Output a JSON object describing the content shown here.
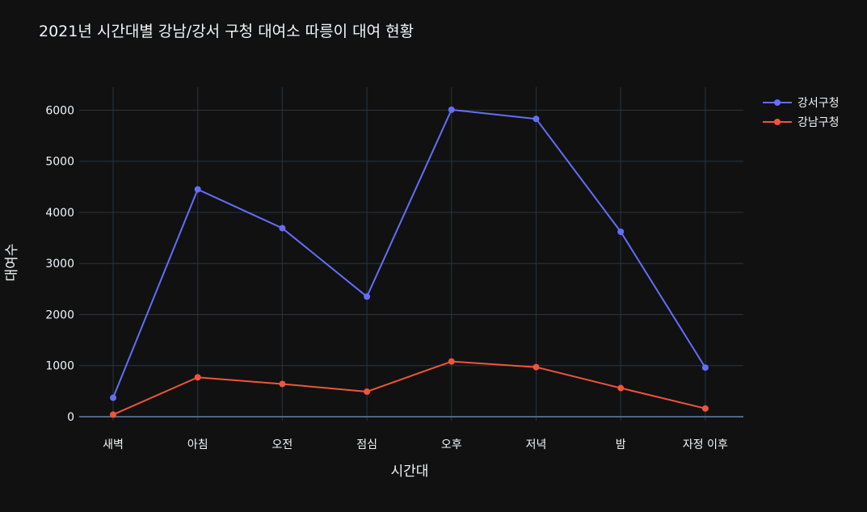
{
  "chart_data": {
    "type": "line",
    "title": "2021년 시간대별 강남/강서 구청 대여소 따릉이 대여 현황",
    "xlabel": "시간대",
    "ylabel": "대여수",
    "categories": [
      "새벽",
      "아침",
      "오전",
      "점심",
      "오후",
      "저녁",
      "밤",
      "자정 이후"
    ],
    "ylim": [
      -80,
      6450
    ],
    "yticks": [
      0,
      1000,
      2000,
      3000,
      4000,
      5000,
      6000
    ],
    "ytick_labels": [
      "0",
      "1000",
      "2000",
      "3000",
      "4000",
      "5000",
      "6000"
    ],
    "grid": true,
    "legend_position": "top-right",
    "series": [
      {
        "name": "강서구청",
        "color": "#636efa",
        "values": [
          370,
          4450,
          3690,
          2350,
          6010,
          5830,
          3620,
          960
        ]
      },
      {
        "name": "강남구청",
        "color": "#ef553b",
        "values": [
          40,
          770,
          640,
          490,
          1080,
          970,
          560,
          160
        ]
      }
    ],
    "background": "#111111",
    "gridcolor": "#283442",
    "zerolinecolor": "#506784"
  }
}
